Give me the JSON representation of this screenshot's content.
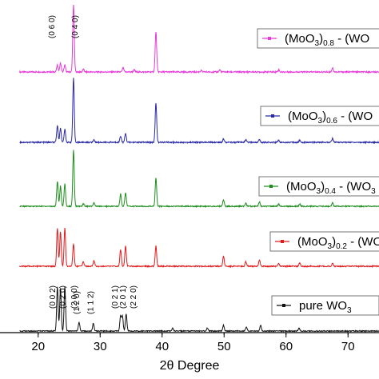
{
  "chart_data": {
    "type": "line",
    "xlabel": "2θ Degree",
    "ylabel": "",
    "xlim": [
      15,
      75
    ],
    "x_ticks": [
      "20",
      "30",
      "40",
      "50",
      "60",
      "70"
    ],
    "grid": false,
    "legend_placement": "right, one box per trace",
    "series": [
      {
        "name_parts": [
          "(MoO",
          "3",
          ")",
          "0.8",
          " - (WO"
        ],
        "color": "#e83ad8",
        "peaks": [
          [
            23.1,
            0.1
          ],
          [
            23.6,
            0.13
          ],
          [
            24.3,
            0.1
          ],
          [
            25.7,
            1.0
          ],
          [
            27.3,
            0.04
          ],
          [
            33.7,
            0.06
          ],
          [
            35.5,
            0.03
          ],
          [
            39.0,
            0.6
          ],
          [
            46.3,
            0.02
          ],
          [
            49.3,
            0.03
          ],
          [
            58.8,
            0.03
          ],
          [
            67.5,
            0.06
          ]
        ]
      },
      {
        "name_parts": [
          "(MoO",
          "3",
          ")",
          "0.6",
          " - (WO"
        ],
        "color": "#2a2aa8",
        "peaks": [
          [
            23.1,
            0.26
          ],
          [
            23.6,
            0.22
          ],
          [
            24.3,
            0.2
          ],
          [
            25.7,
            1.0
          ],
          [
            29.0,
            0.04
          ],
          [
            33.3,
            0.1
          ],
          [
            34.1,
            0.14
          ],
          [
            39.0,
            0.62
          ],
          [
            49.9,
            0.06
          ],
          [
            53.5,
            0.04
          ],
          [
            55.7,
            0.04
          ],
          [
            58.8,
            0.03
          ],
          [
            62.2,
            0.03
          ],
          [
            67.5,
            0.06
          ]
        ]
      },
      {
        "name_parts": [
          "(MoO",
          "3",
          ")",
          "0.4",
          " - (WO",
          "3"
        ],
        "color": "#1e8f1e",
        "peaks": [
          [
            23.1,
            0.44
          ],
          [
            23.6,
            0.36
          ],
          [
            24.3,
            0.4
          ],
          [
            25.7,
            1.0
          ],
          [
            27.3,
            0.05
          ],
          [
            29.0,
            0.06
          ],
          [
            33.3,
            0.22
          ],
          [
            34.1,
            0.24
          ],
          [
            39.0,
            0.5
          ],
          [
            49.9,
            0.12
          ],
          [
            53.5,
            0.06
          ],
          [
            55.7,
            0.08
          ],
          [
            58.8,
            0.04
          ],
          [
            62.2,
            0.04
          ],
          [
            67.5,
            0.06
          ]
        ]
      },
      {
        "name_parts": [
          "(MoO",
          "3",
          ")",
          "0.2",
          " - (WO"
        ],
        "color": "#e31a1c",
        "peaks": [
          [
            23.1,
            0.68
          ],
          [
            23.6,
            0.62
          ],
          [
            24.3,
            0.68
          ],
          [
            25.7,
            0.4
          ],
          [
            27.3,
            0.08
          ],
          [
            29.0,
            0.1
          ],
          [
            33.3,
            0.3
          ],
          [
            34.1,
            0.36
          ],
          [
            39.0,
            0.36
          ],
          [
            49.9,
            0.18
          ],
          [
            53.5,
            0.08
          ],
          [
            55.7,
            0.12
          ],
          [
            58.8,
            0.05
          ],
          [
            62.2,
            0.06
          ],
          [
            67.5,
            0.05
          ]
        ]
      },
      {
        "name_parts": [
          "pure WO",
          "3"
        ],
        "color": "#111111",
        "peaks": [
          [
            23.1,
            0.92
          ],
          [
            23.6,
            0.9
          ],
          [
            24.3,
            0.92
          ],
          [
            26.6,
            0.18
          ],
          [
            28.9,
            0.16
          ],
          [
            33.3,
            0.32
          ],
          [
            33.6,
            0.3
          ],
          [
            34.2,
            0.36
          ],
          [
            41.7,
            0.06
          ],
          [
            47.3,
            0.06
          ],
          [
            49.9,
            0.12
          ],
          [
            53.6,
            0.08
          ],
          [
            55.9,
            0.12
          ],
          [
            62.1,
            0.06
          ]
        ]
      }
    ],
    "annotations": [
      {
        "text": "(0 6 0)",
        "x": 23.1
      },
      {
        "text": "(0 4 0)",
        "x": 25.3
      },
      {
        "text": "(0 0 2)",
        "x": 23.1
      },
      {
        "text": "(0 2 0)",
        "x": 23.6
      },
      {
        "text": "(2 0 0)",
        "x": 24.3
      },
      {
        "text": "(1 2 0)",
        "x": 26.6
      },
      {
        "text": "(1 1 2)",
        "x": 28.9
      },
      {
        "text": "(0 2 1)",
        "x": 33.3
      },
      {
        "text": "(2 0 1)",
        "x": 33.6
      },
      {
        "text": "(2 2 0)",
        "x": 34.2
      }
    ]
  }
}
